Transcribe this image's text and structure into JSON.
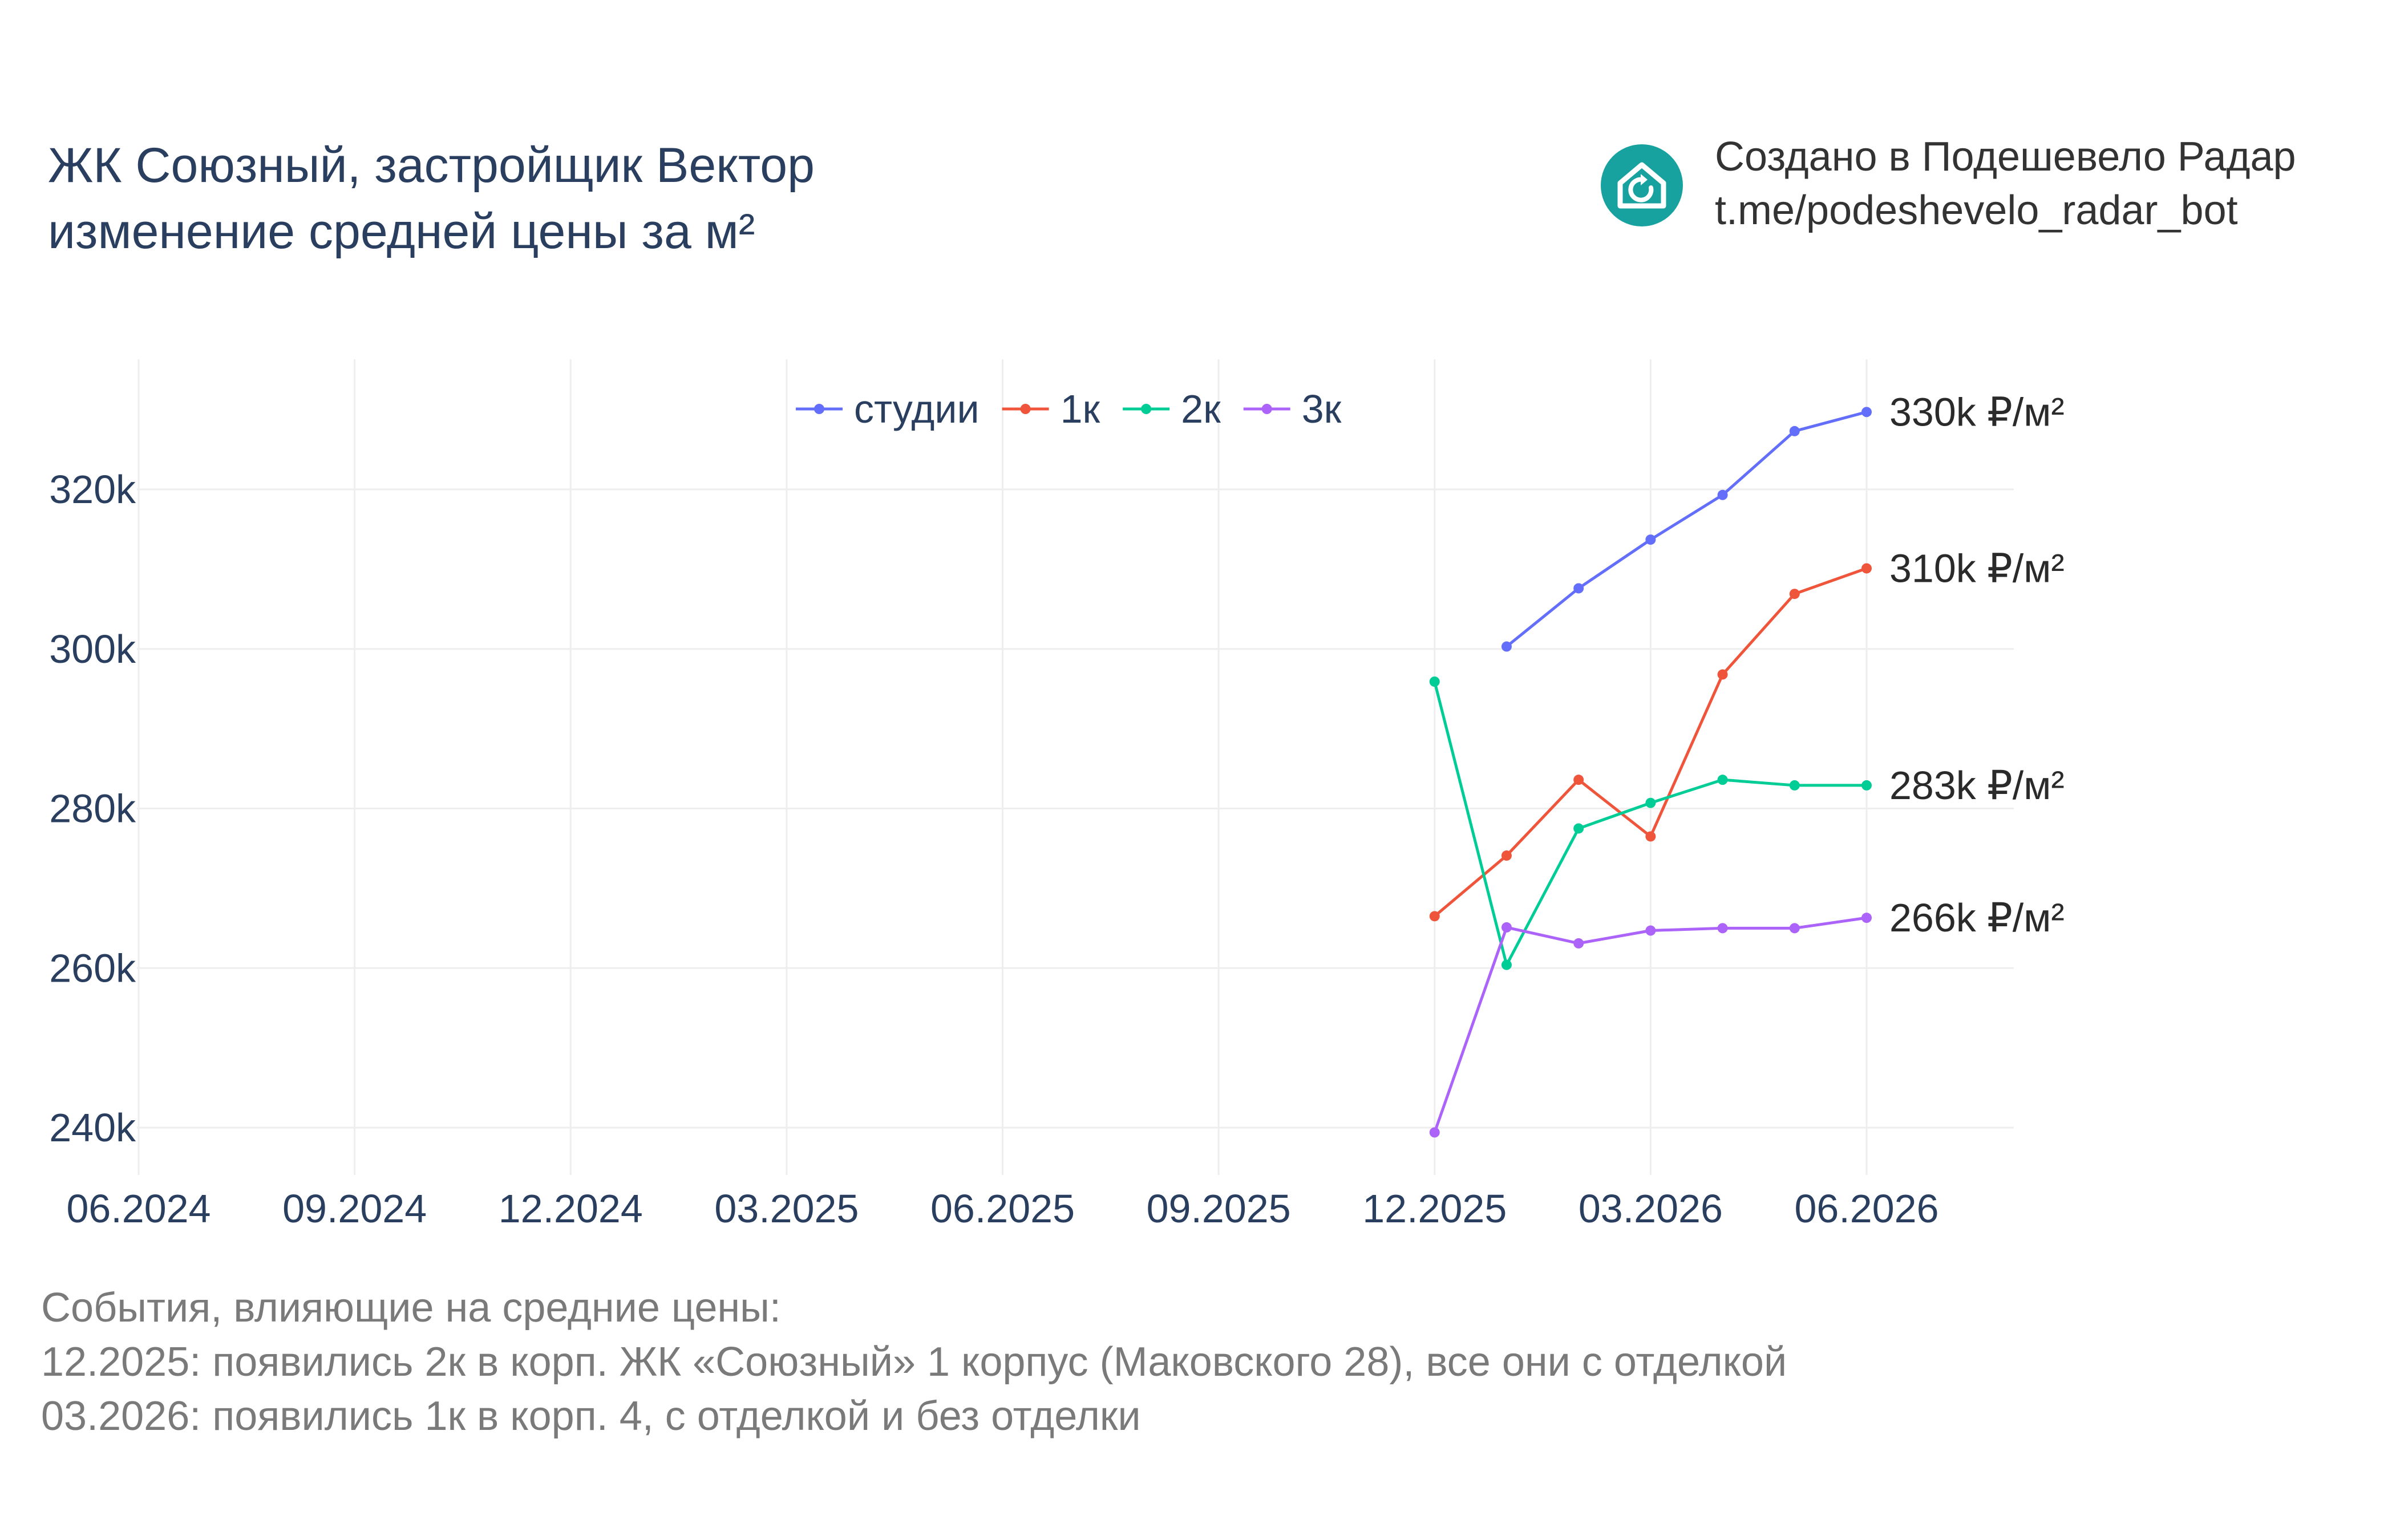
{
  "title_lines": [
    "ЖК Союзный, застройщик Вектор",
    "изменение средней цены за м²"
  ],
  "brand": {
    "icon": "house-refresh-icon",
    "icon_color": "#17a2a0",
    "line1": "Создано в Подешевело Радар",
    "line2": "t.me/podeshevelo_radar_bot"
  },
  "events": {
    "heading": "События, влияющие на средние цены:",
    "items": [
      "12.2025: появились 2к в корп. ЖК «Союзный» 1 корпус (Маковского 28), все они с отделкой",
      "03.2026: появились 1к в корп. 4, с отделкой и без отделки"
    ]
  },
  "chart_data": {
    "type": "line",
    "xlabel": "",
    "ylabel": "",
    "x_ticks": [
      "06.2024",
      "09.2024",
      "12.2024",
      "03.2025",
      "06.2025",
      "09.2025",
      "12.2025",
      "03.2026",
      "06.2026"
    ],
    "y_ticks": [
      "240k",
      "260k",
      "280k",
      "300k",
      "320k"
    ],
    "ylim": [
      234000,
      336000
    ],
    "xlim": [
      "2024-06",
      "2026-08"
    ],
    "grid": true,
    "legend_position": "top-center",
    "series": [
      {
        "name": "студии",
        "color": "#636efa",
        "end_label": "330k ₽/м²",
        "points": [
          [
            "2026-01",
            300300
          ],
          [
            "2026-02",
            307600
          ],
          [
            "2026-03",
            313700
          ],
          [
            "2026-04",
            319300
          ],
          [
            "2026-05",
            327300
          ],
          [
            "2026-06",
            329700
          ]
        ]
      },
      {
        "name": "1к",
        "color": "#ef553b",
        "end_label": "310k ₽/м²",
        "points": [
          [
            "2025-12",
            266500
          ],
          [
            "2026-01",
            274100
          ],
          [
            "2026-02",
            283600
          ],
          [
            "2026-03",
            276500
          ],
          [
            "2026-04",
            296800
          ],
          [
            "2026-05",
            306900
          ],
          [
            "2026-06",
            310100
          ]
        ]
      },
      {
        "name": "2к",
        "color": "#00cc96",
        "end_label": "283k ₽/м²",
        "points": [
          [
            "2025-12",
            295900
          ],
          [
            "2026-01",
            260400
          ],
          [
            "2026-02",
            277500
          ],
          [
            "2026-03",
            280700
          ],
          [
            "2026-04",
            283600
          ],
          [
            "2026-05",
            282900
          ],
          [
            "2026-06",
            282900
          ]
        ]
      },
      {
        "name": "3к",
        "color": "#ab63fa",
        "end_label": "266k ₽/м²",
        "points": [
          [
            "2025-12",
            239400
          ],
          [
            "2026-01",
            265100
          ],
          [
            "2026-02",
            263100
          ],
          [
            "2026-03",
            264700
          ],
          [
            "2026-04",
            265000
          ],
          [
            "2026-05",
            265000
          ],
          [
            "2026-06",
            266300
          ]
        ]
      }
    ]
  }
}
